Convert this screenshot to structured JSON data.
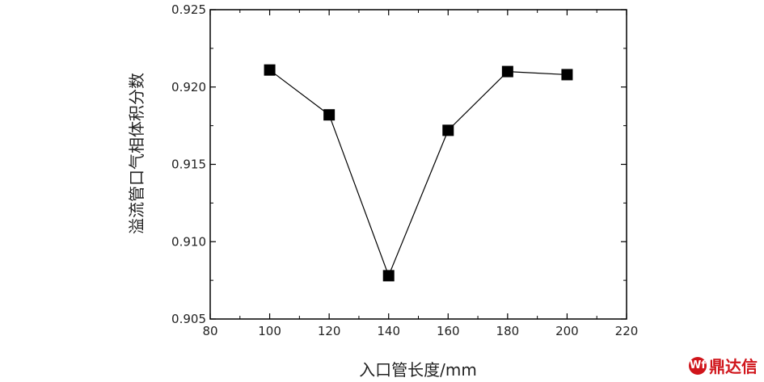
{
  "chart_data": {
    "type": "line",
    "xlabel": "入口管长度/mm",
    "ylabel": "溢流管口气相体积分数",
    "xlim": [
      80,
      220
    ],
    "ylim": [
      0.905,
      0.925
    ],
    "xticks": [
      "80",
      "100",
      "120",
      "140",
      "160",
      "180",
      "200",
      "220"
    ],
    "yticks": [
      "0.905",
      "0.910",
      "0.915",
      "0.920",
      "0.925"
    ],
    "grid": false,
    "marker": "square",
    "series": [
      {
        "x": [
          100,
          120,
          140,
          160,
          180,
          200
        ],
        "y": [
          0.9211,
          0.9182,
          0.9078,
          0.9172,
          0.921,
          0.9208
        ],
        "color": "#000000"
      }
    ]
  },
  "watermark": {
    "icon_name": "dingdaxin-logo-icon",
    "icon_glyph": "Wf",
    "text": "鼎达信",
    "color": "#d0151b"
  }
}
